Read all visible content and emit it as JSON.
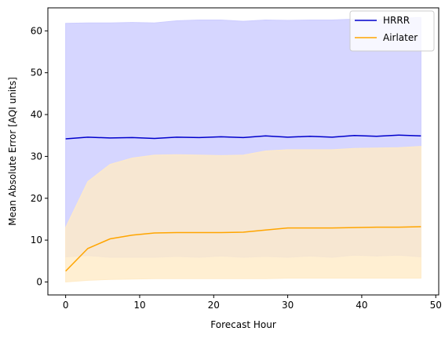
{
  "chart_data": {
    "type": "line",
    "title": "",
    "xlabel": "Forecast Hour",
    "ylabel": "Mean Absolute Error [AQI units]",
    "xlim": [
      -2.4,
      50.4
    ],
    "ylim": [
      -3.1,
      65.5
    ],
    "xticks": [
      0,
      10,
      20,
      30,
      40,
      50
    ],
    "yticks": [
      0,
      10,
      20,
      30,
      40,
      50,
      60
    ],
    "grid": false,
    "legend_position": "top-right",
    "x": [
      0,
      3,
      6,
      9,
      12,
      15,
      18,
      21,
      24,
      27,
      30,
      33,
      36,
      39,
      42,
      45,
      48
    ],
    "series": [
      {
        "name": "HRRR",
        "color": "#0000cc",
        "band_color": "#ccccff",
        "values": [
          34.2,
          34.6,
          34.4,
          34.5,
          34.3,
          34.6,
          34.5,
          34.7,
          34.5,
          34.9,
          34.6,
          34.8,
          34.6,
          35.0,
          34.8,
          35.1,
          34.9
        ],
        "upper": [
          61.8,
          61.9,
          61.9,
          62.0,
          61.9,
          62.4,
          62.6,
          62.6,
          62.3,
          62.6,
          62.5,
          62.6,
          62.6,
          62.8,
          62.6,
          63.0,
          63.2
        ],
        "lower": [
          6.0,
          6.3,
          5.9,
          5.9,
          5.9,
          6.1,
          5.9,
          6.2,
          5.9,
          6.1,
          5.9,
          6.2,
          5.9,
          6.4,
          6.2,
          6.4,
          6.0
        ]
      },
      {
        "name": "Airlater",
        "color": "#ffa500",
        "band_color": "#ffebc7",
        "values": [
          2.6,
          8.0,
          10.3,
          11.2,
          11.7,
          11.8,
          11.8,
          11.8,
          11.9,
          12.4,
          12.9,
          12.9,
          12.9,
          13.0,
          13.1,
          13.1,
          13.2
        ],
        "upper": [
          13.0,
          24.0,
          28.1,
          29.6,
          30.3,
          30.4,
          30.3,
          30.2,
          30.3,
          31.3,
          31.6,
          31.6,
          31.6,
          31.9,
          32.0,
          32.1,
          32.4
        ],
        "lower": [
          0.0,
          0.4,
          0.6,
          0.7,
          0.8,
          0.8,
          0.8,
          0.8,
          0.8,
          0.8,
          0.9,
          0.9,
          0.9,
          0.9,
          0.9,
          0.9,
          0.9
        ]
      }
    ]
  }
}
